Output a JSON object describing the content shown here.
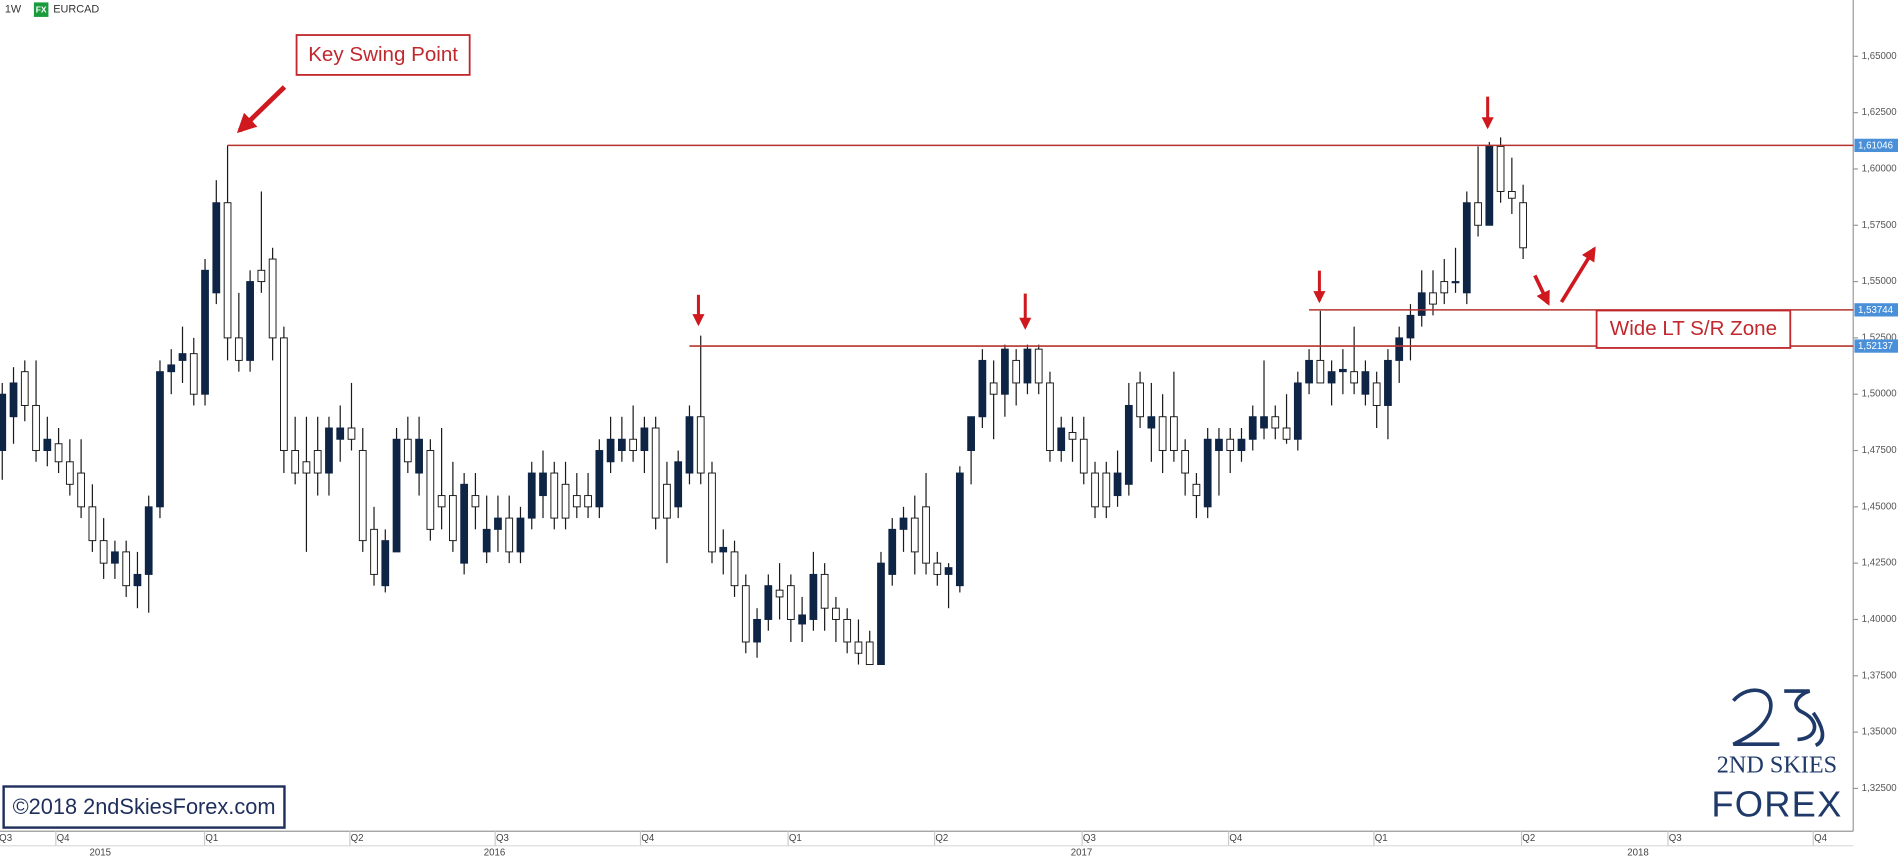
{
  "chart_data": {
    "type": "candlestick",
    "timeframe": "1W",
    "source": "FX",
    "symbol": "EURCAD",
    "up_color": "#0f2545",
    "down_color": "#ffffff",
    "level_color": "#b5332e",
    "level_label_color": "#4a90d9",
    "xlim": [
      -0.2,
      164.3
    ],
    "ylim": [
      1.306,
      1.675
    ],
    "yticks": [
      {
        "value": 1.65,
        "label": "1,65000"
      },
      {
        "value": 1.625,
        "label": "1,62500"
      },
      {
        "value": 1.6,
        "label": "1,60000"
      },
      {
        "value": 1.575,
        "label": "1,57500"
      },
      {
        "value": 1.55,
        "label": "1,55000"
      },
      {
        "value": 1.525,
        "label": "1,52500"
      },
      {
        "value": 1.5,
        "label": "1,50000"
      },
      {
        "value": 1.475,
        "label": "1,47500"
      },
      {
        "value": 1.45,
        "label": "1,45000"
      },
      {
        "value": 1.425,
        "label": "1,42500"
      },
      {
        "value": 1.4,
        "label": "1,40000"
      },
      {
        "value": 1.375,
        "label": "1,37500"
      },
      {
        "value": 1.35,
        "label": "1,35000"
      },
      {
        "value": 1.325,
        "label": "1,32500"
      }
    ],
    "xticks": [
      {
        "value": 0.3,
        "label": "Q3"
      },
      {
        "value": 5.4,
        "label": "Q4"
      },
      {
        "value": 18.6,
        "label": "Q1"
      },
      {
        "value": 31.5,
        "label": "Q2"
      },
      {
        "value": 44.4,
        "label": "Q3"
      },
      {
        "value": 57.3,
        "label": "Q4"
      },
      {
        "value": 70.4,
        "label": "Q1"
      },
      {
        "value": 83.4,
        "label": "Q2"
      },
      {
        "value": 96.5,
        "label": "Q3"
      },
      {
        "value": 109.5,
        "label": "Q4"
      },
      {
        "value": 122.4,
        "label": "Q1"
      },
      {
        "value": 135.5,
        "label": "Q2"
      },
      {
        "value": 148.5,
        "label": "Q3"
      },
      {
        "value": 161.4,
        "label": "Q4"
      }
    ],
    "year_ticks": [
      {
        "value": 8.7,
        "label": "2015"
      },
      {
        "value": 43.7,
        "label": "2016"
      },
      {
        "value": 95.8,
        "label": "2017"
      },
      {
        "value": 145.2,
        "label": "2018"
      }
    ],
    "levels": [
      {
        "value": 1.61046,
        "label": "1,61046",
        "x": 20
      },
      {
        "value": 1.53744,
        "label": "1,53744",
        "x": 116
      },
      {
        "value": 1.52137,
        "label": "1,52137",
        "x": 61
      }
    ],
    "annotations": [
      "Key Swing Point",
      "Wide LT S/R Zone"
    ],
    "copyright": "©2018 2ndSkiesForex.com",
    "logo": [
      "2ND SKIES",
      "FOREX"
    ],
    "candles": [
      [
        1.475,
        1.505,
        1.462,
        1.5
      ],
      [
        1.49,
        1.512,
        1.478,
        1.505
      ],
      [
        1.51,
        1.515,
        1.488,
        1.495
      ],
      [
        1.495,
        1.515,
        1.47,
        1.475
      ],
      [
        1.475,
        1.49,
        1.468,
        1.48
      ],
      [
        1.478,
        1.485,
        1.465,
        1.47
      ],
      [
        1.47,
        1.48,
        1.455,
        1.46
      ],
      [
        1.465,
        1.48,
        1.445,
        1.45
      ],
      [
        1.45,
        1.46,
        1.43,
        1.435
      ],
      [
        1.435,
        1.445,
        1.418,
        1.425
      ],
      [
        1.425,
        1.435,
        1.418,
        1.43
      ],
      [
        1.43,
        1.435,
        1.41,
        1.415
      ],
      [
        1.415,
        1.43,
        1.405,
        1.42
      ],
      [
        1.42,
        1.455,
        1.403,
        1.45
      ],
      [
        1.45,
        1.515,
        1.445,
        1.51
      ],
      [
        1.51,
        1.52,
        1.5,
        1.513
      ],
      [
        1.515,
        1.53,
        1.505,
        1.518
      ],
      [
        1.518,
        1.525,
        1.495,
        1.5
      ],
      [
        1.5,
        1.56,
        1.495,
        1.555
      ],
      [
        1.545,
        1.595,
        1.54,
        1.585
      ],
      [
        1.585,
        1.61046,
        1.515,
        1.525
      ],
      [
        1.525,
        1.545,
        1.51,
        1.515
      ],
      [
        1.515,
        1.555,
        1.51,
        1.55
      ],
      [
        1.555,
        1.59,
        1.545,
        1.55
      ],
      [
        1.56,
        1.565,
        1.515,
        1.525
      ],
      [
        1.525,
        1.53,
        1.465,
        1.475
      ],
      [
        1.475,
        1.49,
        1.46,
        1.465
      ],
      [
        1.47,
        1.49,
        1.43,
        1.465
      ],
      [
        1.475,
        1.49,
        1.455,
        1.465
      ],
      [
        1.465,
        1.49,
        1.455,
        1.485
      ],
      [
        1.48,
        1.495,
        1.47,
        1.485
      ],
      [
        1.485,
        1.505,
        1.475,
        1.48
      ],
      [
        1.475,
        1.485,
        1.43,
        1.435
      ],
      [
        1.44,
        1.45,
        1.415,
        1.42
      ],
      [
        1.415,
        1.44,
        1.412,
        1.435
      ],
      [
        1.43,
        1.485,
        1.43,
        1.48
      ],
      [
        1.48,
        1.49,
        1.465,
        1.47
      ],
      [
        1.465,
        1.49,
        1.455,
        1.48
      ],
      [
        1.475,
        1.48,
        1.435,
        1.44
      ],
      [
        1.455,
        1.485,
        1.44,
        1.45
      ],
      [
        1.455,
        1.47,
        1.43,
        1.435
      ],
      [
        1.425,
        1.465,
        1.42,
        1.46
      ],
      [
        1.455,
        1.465,
        1.44,
        1.45
      ],
      [
        1.43,
        1.455,
        1.425,
        1.44
      ],
      [
        1.44,
        1.455,
        1.43,
        1.445
      ],
      [
        1.445,
        1.455,
        1.425,
        1.43
      ],
      [
        1.43,
        1.45,
        1.425,
        1.445
      ],
      [
        1.445,
        1.47,
        1.44,
        1.465
      ],
      [
        1.455,
        1.475,
        1.445,
        1.465
      ],
      [
        1.465,
        1.47,
        1.44,
        1.445
      ],
      [
        1.46,
        1.47,
        1.44,
        1.445
      ],
      [
        1.455,
        1.465,
        1.445,
        1.45
      ],
      [
        1.455,
        1.465,
        1.445,
        1.45
      ],
      [
        1.45,
        1.48,
        1.445,
        1.475
      ],
      [
        1.47,
        1.49,
        1.465,
        1.48
      ],
      [
        1.475,
        1.49,
        1.47,
        1.48
      ],
      [
        1.48,
        1.495,
        1.47,
        1.475
      ],
      [
        1.475,
        1.49,
        1.465,
        1.485
      ],
      [
        1.485,
        1.49,
        1.44,
        1.445
      ],
      [
        1.46,
        1.47,
        1.425,
        1.445
      ],
      [
        1.45,
        1.475,
        1.445,
        1.47
      ],
      [
        1.465,
        1.495,
        1.46,
        1.49
      ],
      [
        1.49,
        1.526,
        1.46,
        1.465
      ],
      [
        1.465,
        1.47,
        1.425,
        1.43
      ],
      [
        1.43,
        1.44,
        1.42,
        1.432
      ],
      [
        1.43,
        1.435,
        1.41,
        1.415
      ],
      [
        1.415,
        1.42,
        1.385,
        1.39
      ],
      [
        1.39,
        1.405,
        1.383,
        1.4
      ],
      [
        1.4,
        1.42,
        1.395,
        1.415
      ],
      [
        1.413,
        1.425,
        1.4,
        1.41
      ],
      [
        1.415,
        1.42,
        1.39,
        1.4
      ],
      [
        1.398,
        1.41,
        1.39,
        1.402
      ],
      [
        1.4,
        1.43,
        1.395,
        1.42
      ],
      [
        1.42,
        1.425,
        1.395,
        1.405
      ],
      [
        1.405,
        1.41,
        1.39,
        1.4
      ],
      [
        1.4,
        1.405,
        1.385,
        1.39
      ],
      [
        1.39,
        1.4,
        1.38,
        1.385
      ],
      [
        1.39,
        1.395,
        1.38,
        1.38
      ],
      [
        1.38,
        1.43,
        1.38,
        1.425
      ],
      [
        1.42,
        1.445,
        1.415,
        1.44
      ],
      [
        1.44,
        1.45,
        1.43,
        1.445
      ],
      [
        1.445,
        1.455,
        1.42,
        1.43
      ],
      [
        1.45,
        1.465,
        1.42,
        1.425
      ],
      [
        1.425,
        1.43,
        1.415,
        1.42
      ],
      [
        1.42,
        1.425,
        1.405,
        1.423
      ],
      [
        1.415,
        1.468,
        1.412,
        1.465
      ],
      [
        1.475,
        1.49,
        1.46,
        1.49
      ],
      [
        1.49,
        1.52,
        1.485,
        1.515
      ],
      [
        1.505,
        1.515,
        1.48,
        1.5
      ],
      [
        1.5,
        1.522,
        1.49,
        1.52
      ],
      [
        1.515,
        1.52,
        1.495,
        1.505
      ],
      [
        1.505,
        1.522,
        1.5,
        1.52
      ],
      [
        1.52,
        1.522,
        1.5,
        1.505
      ],
      [
        1.505,
        1.51,
        1.47,
        1.475
      ],
      [
        1.475,
        1.49,
        1.47,
        1.485
      ],
      [
        1.483,
        1.49,
        1.47,
        1.48
      ],
      [
        1.48,
        1.49,
        1.46,
        1.465
      ],
      [
        1.465,
        1.47,
        1.445,
        1.45
      ],
      [
        1.465,
        1.47,
        1.445,
        1.45
      ],
      [
        1.455,
        1.475,
        1.45,
        1.465
      ],
      [
        1.46,
        1.505,
        1.455,
        1.495
      ],
      [
        1.505,
        1.51,
        1.485,
        1.49
      ],
      [
        1.485,
        1.505,
        1.47,
        1.49
      ],
      [
        1.49,
        1.5,
        1.465,
        1.475
      ],
      [
        1.49,
        1.51,
        1.47,
        1.475
      ],
      [
        1.475,
        1.48,
        1.455,
        1.465
      ],
      [
        1.46,
        1.465,
        1.445,
        1.455
      ],
      [
        1.45,
        1.485,
        1.445,
        1.48
      ],
      [
        1.475,
        1.485,
        1.455,
        1.48
      ],
      [
        1.48,
        1.485,
        1.465,
        1.475
      ],
      [
        1.475,
        1.485,
        1.47,
        1.48
      ],
      [
        1.48,
        1.495,
        1.475,
        1.49
      ],
      [
        1.485,
        1.515,
        1.48,
        1.49
      ],
      [
        1.49,
        1.495,
        1.48,
        1.485
      ],
      [
        1.485,
        1.5,
        1.478,
        1.48
      ],
      [
        1.48,
        1.51,
        1.475,
        1.505
      ],
      [
        1.505,
        1.52,
        1.5,
        1.515
      ],
      [
        1.515,
        1.537,
        1.505,
        1.505
      ],
      [
        1.505,
        1.515,
        1.495,
        1.51
      ],
      [
        1.51,
        1.52,
        1.5,
        1.511
      ],
      [
        1.51,
        1.53,
        1.5,
        1.505
      ],
      [
        1.5,
        1.515,
        1.495,
        1.51
      ],
      [
        1.505,
        1.51,
        1.485,
        1.495
      ],
      [
        1.495,
        1.52,
        1.48,
        1.515
      ],
      [
        1.515,
        1.53,
        1.505,
        1.525
      ],
      [
        1.525,
        1.54,
        1.515,
        1.535
      ],
      [
        1.535,
        1.555,
        1.53,
        1.545
      ],
      [
        1.545,
        1.555,
        1.535,
        1.54
      ],
      [
        1.55,
        1.56,
        1.54,
        1.545
      ],
      [
        1.55,
        1.565,
        1.545,
        1.55
      ],
      [
        1.545,
        1.59,
        1.54,
        1.585
      ],
      [
        1.585,
        1.61,
        1.57,
        1.575
      ],
      [
        1.575,
        1.612,
        1.575,
        1.61
      ],
      [
        1.61,
        1.614,
        1.585,
        1.59
      ],
      [
        1.59,
        1.605,
        1.58,
        1.587
      ],
      [
        1.585,
        1.593,
        1.56,
        1.565
      ]
    ]
  }
}
